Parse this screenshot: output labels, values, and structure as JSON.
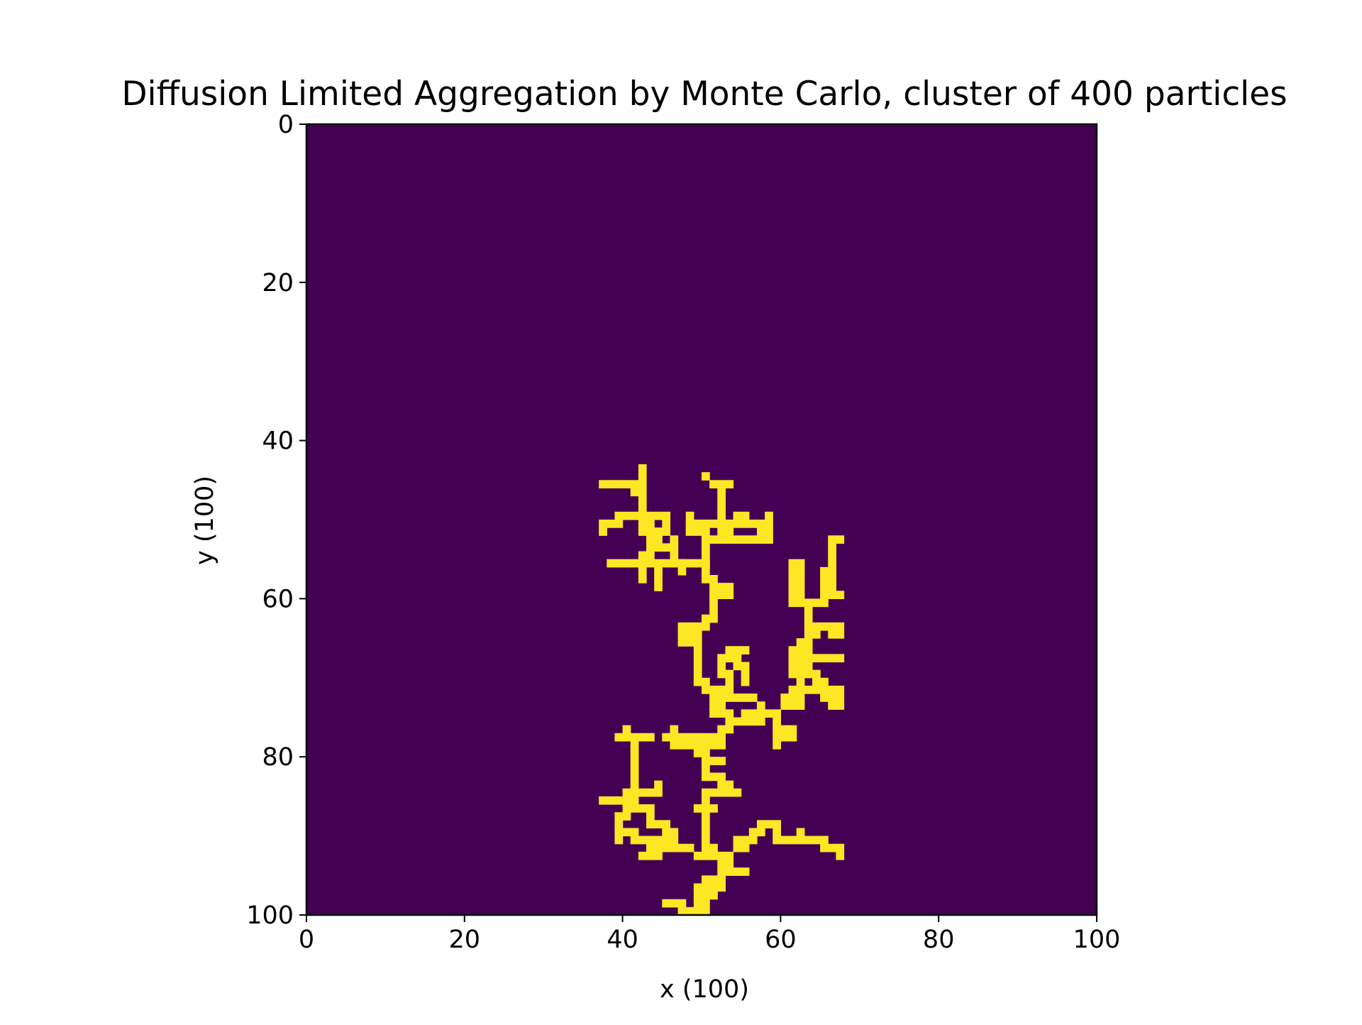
{
  "chart_data": {
    "type": "heatmap",
    "title": "Diffusion Limited Aggregation by Monte Carlo, cluster of 400 particles",
    "xlabel": "x (100)",
    "ylabel": "y (100)",
    "xlim": [
      0,
      100
    ],
    "ylim": [
      100,
      0
    ],
    "y_inverted": true,
    "xticks": [
      0,
      20,
      40,
      60,
      80,
      100
    ],
    "yticks": [
      0,
      20,
      40,
      60,
      80,
      100
    ],
    "grid": false,
    "grid_size": 100,
    "colors": {
      "empty": "#440154",
      "occupied": "#fde725",
      "frame": "#000000"
    },
    "occupied_cells_note": "",
    "particles": [
      [
        47,
        99
      ],
      [
        48,
        99
      ],
      [
        49,
        99
      ],
      [
        50,
        99
      ],
      [
        49,
        98
      ],
      [
        50,
        98
      ],
      [
        45,
        98
      ],
      [
        46,
        98
      ],
      [
        47,
        98
      ],
      [
        49,
        97
      ],
      [
        50,
        97
      ],
      [
        51,
        97
      ],
      [
        49,
        96
      ],
      [
        50,
        96
      ],
      [
        51,
        96
      ],
      [
        52,
        96
      ],
      [
        50,
        95
      ],
      [
        51,
        95
      ],
      [
        52,
        95
      ],
      [
        52,
        94
      ],
      [
        53,
        94
      ],
      [
        54,
        94
      ],
      [
        55,
        94
      ],
      [
        52,
        93
      ],
      [
        53,
        93
      ],
      [
        52,
        92
      ],
      [
        51,
        92
      ],
      [
        50,
        91
      ],
      [
        51,
        91
      ],
      [
        49,
        92
      ],
      [
        50,
        92
      ],
      [
        53,
        92
      ],
      [
        54,
        91
      ],
      [
        55,
        91
      ],
      [
        54,
        90
      ],
      [
        55,
        90
      ],
      [
        56,
        90
      ],
      [
        56,
        89
      ],
      [
        57,
        89
      ],
      [
        57,
        88
      ],
      [
        58,
        88
      ],
      [
        59,
        88
      ],
      [
        59,
        89
      ],
      [
        59,
        90
      ],
      [
        60,
        90
      ],
      [
        61,
        90
      ],
      [
        62,
        90
      ],
      [
        63,
        90
      ],
      [
        64,
        90
      ],
      [
        65,
        90
      ],
      [
        65,
        91
      ],
      [
        66,
        91
      ],
      [
        67,
        91
      ],
      [
        67,
        92
      ],
      [
        62,
        89
      ],
      [
        48,
        91
      ],
      [
        47,
        91
      ],
      [
        46,
        91
      ],
      [
        45,
        91
      ],
      [
        44,
        91
      ],
      [
        43,
        91
      ],
      [
        43,
        92
      ],
      [
        42,
        92
      ],
      [
        44,
        92
      ],
      [
        45,
        90
      ],
      [
        45,
        89
      ],
      [
        46,
        89
      ],
      [
        46,
        90
      ],
      [
        44,
        90
      ],
      [
        43,
        90
      ],
      [
        42,
        90
      ],
      [
        41,
        90
      ],
      [
        41,
        89
      ],
      [
        40,
        89
      ],
      [
        39,
        89
      ],
      [
        39,
        90
      ],
      [
        39,
        88
      ],
      [
        39,
        87
      ],
      [
        40,
        87
      ],
      [
        45,
        88
      ],
      [
        44,
        88
      ],
      [
        43,
        88
      ],
      [
        43,
        87
      ],
      [
        43,
        86
      ],
      [
        42,
        86
      ],
      [
        41,
        86
      ],
      [
        41,
        85
      ],
      [
        40,
        85
      ],
      [
        39,
        85
      ],
      [
        38,
        85
      ],
      [
        37,
        85
      ],
      [
        40,
        86
      ],
      [
        40,
        84
      ],
      [
        41,
        84
      ],
      [
        42,
        84
      ],
      [
        43,
        84
      ],
      [
        44,
        84
      ],
      [
        44,
        83
      ],
      [
        41,
        83
      ],
      [
        41,
        82
      ],
      [
        41,
        81
      ],
      [
        41,
        80
      ],
      [
        41,
        79
      ],
      [
        41,
        78
      ],
      [
        41,
        77
      ],
      [
        40,
        77
      ],
      [
        39,
        77
      ],
      [
        40,
        76
      ],
      [
        42,
        77
      ],
      [
        43,
        77
      ],
      [
        50,
        90
      ],
      [
        50,
        89
      ],
      [
        50,
        88
      ],
      [
        50,
        87
      ],
      [
        50,
        86
      ],
      [
        49,
        86
      ],
      [
        51,
        86
      ],
      [
        50,
        85
      ],
      [
        50,
        84
      ],
      [
        51,
        84
      ],
      [
        52,
        84
      ],
      [
        53,
        84
      ],
      [
        54,
        84
      ],
      [
        52,
        83
      ],
      [
        53,
        83
      ],
      [
        52,
        82
      ],
      [
        50,
        82
      ],
      [
        51,
        82
      ],
      [
        50,
        81
      ],
      [
        50,
        80
      ],
      [
        51,
        80
      ],
      [
        52,
        80
      ],
      [
        50,
        79
      ],
      [
        49,
        79
      ],
      [
        51,
        78
      ],
      [
        50,
        78
      ],
      [
        49,
        78
      ],
      [
        48,
        78
      ],
      [
        47,
        78
      ],
      [
        46,
        78
      ],
      [
        46,
        77
      ],
      [
        45,
        77
      ],
      [
        46,
        76
      ],
      [
        47,
        77
      ],
      [
        48,
        77
      ],
      [
        49,
        77
      ],
      [
        50,
        77
      ],
      [
        51,
        77
      ],
      [
        52,
        77
      ],
      [
        52,
        78
      ],
      [
        52,
        76
      ],
      [
        53,
        76
      ],
      [
        53,
        75
      ],
      [
        53,
        74
      ],
      [
        52,
        74
      ],
      [
        51,
        74
      ],
      [
        51,
        73
      ],
      [
        52,
        73
      ],
      [
        54,
        75
      ],
      [
        55,
        75
      ],
      [
        55,
        74
      ],
      [
        56,
        74
      ],
      [
        56,
        75
      ],
      [
        57,
        75
      ],
      [
        57,
        74
      ],
      [
        57,
        73
      ],
      [
        58,
        74
      ],
      [
        59,
        74
      ],
      [
        59,
        75
      ],
      [
        59,
        76
      ],
      [
        59,
        77
      ],
      [
        59,
        78
      ],
      [
        60,
        76
      ],
      [
        60,
        77
      ],
      [
        61,
        77
      ],
      [
        61,
        76
      ],
      [
        60,
        73
      ],
      [
        61,
        73
      ],
      [
        62,
        73
      ],
      [
        60,
        72
      ],
      [
        61,
        72
      ],
      [
        62,
        72
      ],
      [
        61,
        71
      ],
      [
        62,
        71
      ],
      [
        63,
        71
      ],
      [
        64,
        71
      ],
      [
        65,
        71
      ],
      [
        66,
        71
      ],
      [
        67,
        71
      ],
      [
        65,
        72
      ],
      [
        66,
        72
      ],
      [
        66,
        73
      ],
      [
        67,
        72
      ],
      [
        67,
        73
      ],
      [
        56,
        72
      ],
      [
        55,
        72
      ],
      [
        54,
        72
      ],
      [
        53,
        72
      ],
      [
        52,
        72
      ],
      [
        51,
        72
      ],
      [
        51,
        71
      ],
      [
        50,
        71
      ],
      [
        50,
        70
      ],
      [
        49,
        70
      ],
      [
        49,
        69
      ],
      [
        49,
        68
      ],
      [
        49,
        67
      ],
      [
        49,
        66
      ],
      [
        49,
        65
      ],
      [
        49,
        64
      ],
      [
        48,
        64
      ],
      [
        48,
        65
      ],
      [
        47,
        65
      ],
      [
        47,
        64
      ],
      [
        47,
        63
      ],
      [
        48,
        63
      ],
      [
        49,
        63
      ],
      [
        50,
        63
      ],
      [
        50,
        62
      ],
      [
        51,
        62
      ],
      [
        51,
        61
      ],
      [
        51,
        60
      ],
      [
        51,
        59
      ],
      [
        52,
        59
      ],
      [
        52,
        58
      ],
      [
        53,
        58
      ],
      [
        53,
        59
      ],
      [
        51,
        58
      ],
      [
        51,
        57
      ],
      [
        50,
        57
      ],
      [
        50,
        56
      ],
      [
        50,
        55
      ],
      [
        50,
        54
      ],
      [
        50,
        53
      ],
      [
        50,
        52
      ],
      [
        50,
        51
      ],
      [
        51,
        52
      ],
      [
        52,
        52
      ],
      [
        53,
        52
      ],
      [
        54,
        52
      ],
      [
        55,
        52
      ],
      [
        56,
        52
      ],
      [
        57,
        52
      ],
      [
        58,
        52
      ],
      [
        58,
        51
      ],
      [
        57,
        51
      ],
      [
        57,
        50
      ],
      [
        58,
        50
      ],
      [
        58,
        49
      ],
      [
        52,
        71
      ],
      [
        53,
        71
      ],
      [
        53,
        70
      ],
      [
        53,
        69
      ],
      [
        52,
        69
      ],
      [
        52,
        68
      ],
      [
        52,
        67
      ],
      [
        53,
        67
      ],
      [
        54,
        67
      ],
      [
        54,
        68
      ],
      [
        55,
        68
      ],
      [
        55,
        69
      ],
      [
        55,
        70
      ],
      [
        55,
        66
      ],
      [
        54,
        66
      ],
      [
        53,
        66
      ],
      [
        52,
        51
      ],
      [
        53,
        51
      ],
      [
        53,
        50
      ],
      [
        52,
        50
      ],
      [
        51,
        50
      ],
      [
        50,
        50
      ],
      [
        49,
        50
      ],
      [
        49,
        51
      ],
      [
        48,
        50
      ],
      [
        48,
        51
      ],
      [
        48,
        49
      ],
      [
        52,
        49
      ],
      [
        52,
        48
      ],
      [
        52,
        47
      ],
      [
        52,
        46
      ],
      [
        52,
        45
      ],
      [
        51,
        45
      ],
      [
        53,
        45
      ],
      [
        50,
        44
      ],
      [
        54,
        50
      ],
      [
        54,
        49
      ],
      [
        55,
        49
      ],
      [
        55,
        50
      ],
      [
        56,
        50
      ],
      [
        62,
        71
      ],
      [
        62,
        70
      ],
      [
        62,
        69
      ],
      [
        62,
        68
      ],
      [
        63,
        68
      ],
      [
        63,
        67
      ],
      [
        64,
        67
      ],
      [
        65,
        67
      ],
      [
        66,
        67
      ],
      [
        67,
        67
      ],
      [
        63,
        66
      ],
      [
        63,
        65
      ],
      [
        63,
        64
      ],
      [
        63,
        63
      ],
      [
        64,
        63
      ],
      [
        64,
        64
      ],
      [
        65,
        63
      ],
      [
        66,
        63
      ],
      [
        67,
        63
      ],
      [
        67,
        64
      ],
      [
        66,
        64
      ],
      [
        63,
        62
      ],
      [
        63,
        61
      ],
      [
        63,
        60
      ],
      [
        64,
        60
      ],
      [
        65,
        60
      ],
      [
        65,
        59
      ],
      [
        65,
        58
      ],
      [
        65,
        57
      ],
      [
        65,
        56
      ],
      [
        66,
        56
      ],
      [
        66,
        57
      ],
      [
        66,
        58
      ],
      [
        66,
        59
      ],
      [
        67,
        59
      ],
      [
        66,
        55
      ],
      [
        66,
        54
      ],
      [
        66,
        53
      ],
      [
        66,
        52
      ],
      [
        67,
        52
      ],
      [
        62,
        67
      ],
      [
        61,
        67
      ],
      [
        61,
        66
      ],
      [
        62,
        66
      ],
      [
        62,
        65
      ],
      [
        61,
        68
      ],
      [
        61,
        69
      ],
      [
        62,
        69
      ],
      [
        63,
        69
      ],
      [
        64,
        69
      ],
      [
        64,
        70
      ],
      [
        65,
        70
      ],
      [
        62,
        60
      ],
      [
        62,
        59
      ],
      [
        62,
        58
      ],
      [
        62,
        57
      ],
      [
        62,
        56
      ],
      [
        62,
        55
      ],
      [
        61,
        60
      ],
      [
        61,
        59
      ],
      [
        61,
        58
      ],
      [
        61,
        57
      ],
      [
        61,
        56
      ],
      [
        61,
        55
      ],
      [
        50,
        55
      ],
      [
        49,
        55
      ],
      [
        48,
        55
      ],
      [
        47,
        55
      ],
      [
        46,
        55
      ],
      [
        45,
        55
      ],
      [
        44,
        55
      ],
      [
        43,
        55
      ],
      [
        42,
        55
      ],
      [
        41,
        55
      ],
      [
        40,
        55
      ],
      [
        39,
        55
      ],
      [
        38,
        55
      ],
      [
        42,
        56
      ],
      [
        42,
        57
      ],
      [
        44,
        56
      ],
      [
        44,
        57
      ],
      [
        44,
        58
      ],
      [
        43,
        54
      ],
      [
        42,
        54
      ],
      [
        43,
        53
      ],
      [
        44,
        53
      ],
      [
        45,
        53
      ],
      [
        44,
        52
      ],
      [
        43,
        52
      ],
      [
        44,
        51
      ],
      [
        45,
        51
      ],
      [
        45,
        50
      ],
      [
        45,
        49
      ],
      [
        44,
        49
      ],
      [
        43,
        49
      ],
      [
        43,
        50
      ],
      [
        43,
        51
      ],
      [
        42,
        51
      ],
      [
        42,
        50
      ],
      [
        42,
        49
      ],
      [
        42,
        48
      ],
      [
        42,
        47
      ],
      [
        42,
        46
      ],
      [
        42,
        45
      ],
      [
        42,
        44
      ],
      [
        42,
        43
      ],
      [
        41,
        46
      ],
      [
        41,
        45
      ],
      [
        40,
        45
      ],
      [
        39,
        45
      ],
      [
        38,
        45
      ],
      [
        37,
        45
      ],
      [
        41,
        49
      ],
      [
        40,
        49
      ],
      [
        39,
        49
      ],
      [
        39,
        50
      ],
      [
        38,
        50
      ],
      [
        37,
        50
      ],
      [
        37,
        51
      ],
      [
        46,
        52
      ],
      [
        46,
        53
      ],
      [
        46,
        54
      ],
      [
        47,
        56
      ],
      [
        47,
        55
      ]
    ]
  },
  "tick_labels": {
    "x": [
      "0",
      "20",
      "40",
      "60",
      "80",
      "100"
    ],
    "y": [
      "0",
      "20",
      "40",
      "60",
      "80",
      "100"
    ]
  }
}
